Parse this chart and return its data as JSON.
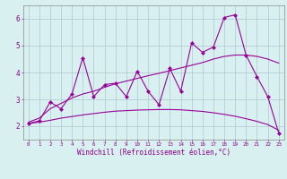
{
  "x": [
    0,
    1,
    2,
    3,
    4,
    5,
    6,
    7,
    8,
    9,
    10,
    11,
    12,
    13,
    14,
    15,
    16,
    17,
    18,
    19,
    20,
    21,
    22,
    23
  ],
  "y_main": [
    2.1,
    2.2,
    2.9,
    2.65,
    3.2,
    4.55,
    3.1,
    3.55,
    3.6,
    3.1,
    4.05,
    3.3,
    2.8,
    4.15,
    3.3,
    5.1,
    4.75,
    4.95,
    6.05,
    6.15,
    4.65,
    3.85,
    3.1,
    1.75
  ],
  "y_upper": [
    2.15,
    2.3,
    2.65,
    2.85,
    3.05,
    3.2,
    3.3,
    3.45,
    3.58,
    3.68,
    3.78,
    3.88,
    3.97,
    4.07,
    4.17,
    4.27,
    4.37,
    4.5,
    4.6,
    4.65,
    4.65,
    4.6,
    4.5,
    4.35
  ],
  "y_lower": [
    2.1,
    2.15,
    2.22,
    2.3,
    2.36,
    2.42,
    2.47,
    2.52,
    2.56,
    2.58,
    2.6,
    2.61,
    2.62,
    2.62,
    2.61,
    2.58,
    2.55,
    2.5,
    2.44,
    2.37,
    2.28,
    2.18,
    2.06,
    1.85
  ],
  "line_color": "#990099",
  "bg_color": "#d8f0f0",
  "grid_color": "#b0c8d0",
  "xlabel": "Windchill (Refroidissement éolien,°C)",
  "xlim": [
    -0.5,
    23.5
  ],
  "ylim": [
    1.5,
    6.5
  ],
  "yticks": [
    2,
    3,
    4,
    5,
    6
  ],
  "xticks": [
    0,
    1,
    2,
    3,
    4,
    5,
    6,
    7,
    8,
    9,
    10,
    11,
    12,
    13,
    14,
    15,
    16,
    17,
    18,
    19,
    20,
    21,
    22,
    23
  ]
}
